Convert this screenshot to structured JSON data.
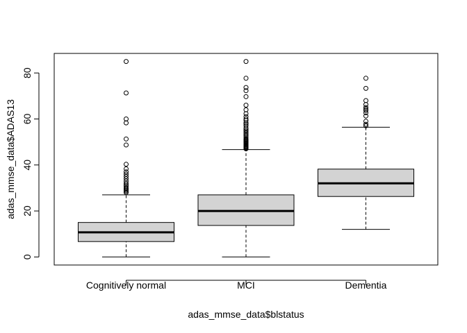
{
  "chart_data": {
    "type": "boxplot",
    "title": "",
    "xlabel": "adas_mmse_data$blstatus",
    "ylabel": "adas_mmse_data$ADAS13",
    "ylim": [
      -3.5,
      88.5
    ],
    "yticks": [
      0,
      20,
      40,
      60,
      80
    ],
    "categories": [
      "Cognitively normal",
      "MCI",
      "Dementia"
    ],
    "box_fill": "#d3d3d3",
    "boxes": [
      {
        "category": "Cognitively normal",
        "whisker_low": 0,
        "q1": 6.7,
        "median": 10.7,
        "q3": 15,
        "whisker_high": 27,
        "outliers": [
          28,
          28.5,
          29,
          29.5,
          30,
          30.7,
          31.3,
          32,
          33,
          34,
          35,
          36,
          37,
          38.3,
          40.3,
          48.7,
          51.3,
          58.3,
          60,
          71.3,
          85
        ]
      },
      {
        "category": "MCI",
        "whisker_low": 0,
        "q1": 13.7,
        "median": 20,
        "q3": 27,
        "whisker_high": 46.7,
        "outliers": [
          47,
          47.3,
          47.7,
          48,
          48.3,
          48.7,
          49,
          49.3,
          49.7,
          50,
          50.3,
          50.7,
          51,
          51.3,
          52,
          52.7,
          53.3,
          54,
          54.7,
          55.3,
          56,
          57,
          57.7,
          58.3,
          59.3,
          60,
          61,
          62.3,
          64,
          66,
          69.7,
          72.3,
          73.7,
          77.7,
          85
        ]
      },
      {
        "category": "Dementia",
        "whisker_low": 12,
        "q1": 26.3,
        "median": 32,
        "q3": 38.2,
        "whisker_high": 56.4,
        "outliers": [
          57,
          57.7,
          59,
          61.3,
          62.7,
          63.7,
          64.3,
          65,
          66.3,
          68,
          73.3,
          77.7
        ]
      }
    ]
  }
}
